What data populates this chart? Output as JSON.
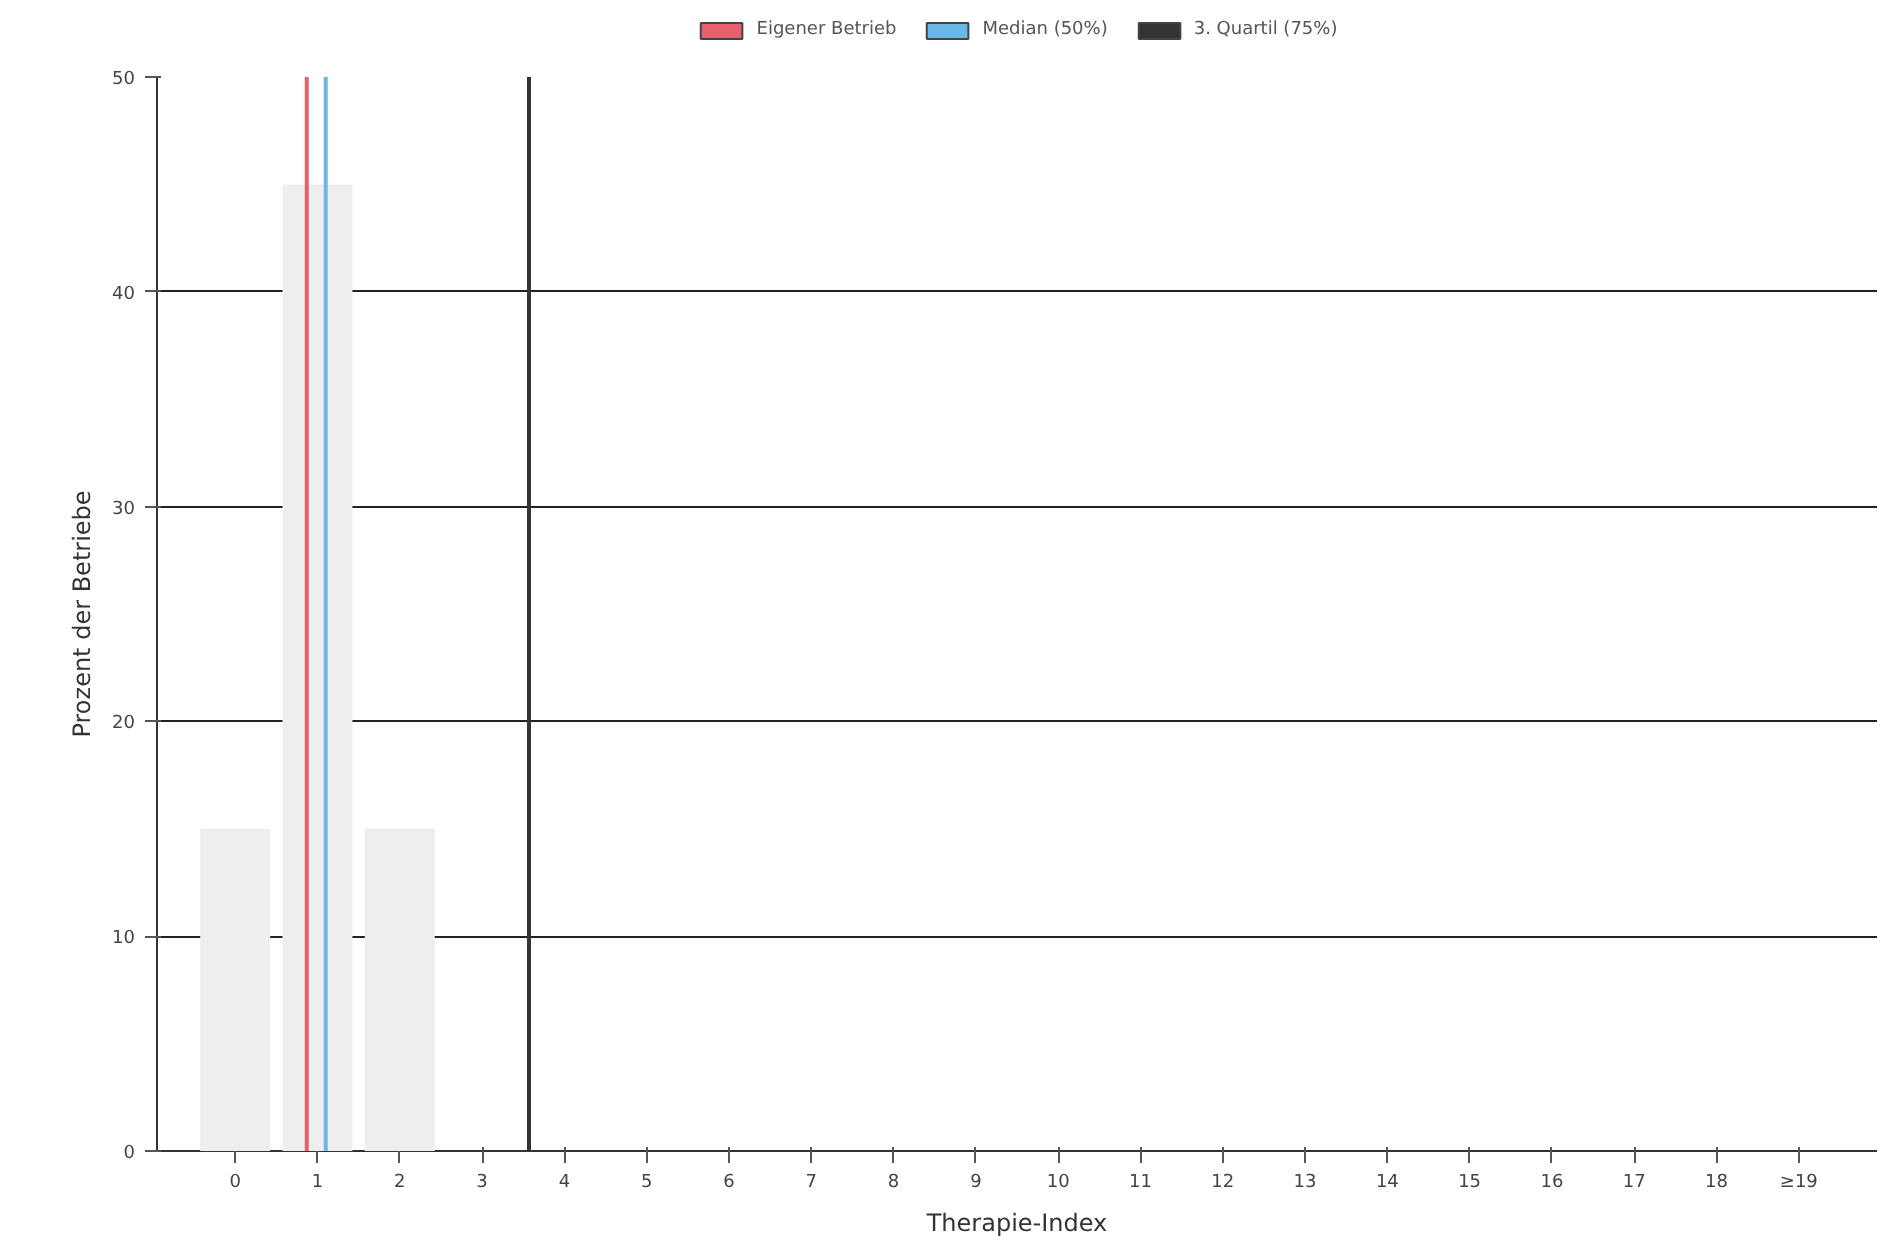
{
  "chart_data": {
    "type": "bar",
    "xlabel": "Therapie-Index",
    "ylabel": "Prozent der Betriebe",
    "x": [
      0,
      1,
      2,
      3,
      4,
      5,
      6,
      7,
      8,
      9,
      10,
      11,
      12,
      13,
      14,
      15,
      16,
      17,
      18,
      19
    ],
    "values": [
      15,
      45,
      15,
      0,
      0,
      0,
      0,
      0,
      0,
      0,
      0,
      0,
      0,
      0,
      0,
      0,
      0,
      0,
      0,
      0
    ],
    "color": "#eeeeee",
    "xlim": [
      -0.95,
      19.95
    ],
    "xticks": [
      0,
      1,
      2,
      3,
      4,
      5,
      6,
      7,
      8,
      9,
      10,
      11,
      12,
      13,
      14,
      15,
      16,
      17,
      18,
      {
        "value": 19,
        "label": "≥19"
      }
    ],
    "ylim": [
      0,
      50
    ],
    "yticks": [
      0,
      10,
      20,
      30,
      40,
      50
    ],
    "ref_lines": [
      {
        "axis": "x",
        "value": 0.87,
        "label": "Eigener Betrieb",
        "color": "#e8606e"
      },
      {
        "axis": "x",
        "value": 1.1,
        "label": "Median (50%)",
        "color": "#6ab8e8"
      },
      {
        "axis": "x",
        "value": 3.57,
        "label": "3. Quartil (75%)",
        "color": "#333333"
      }
    ],
    "grid": "y",
    "legend": "top"
  }
}
